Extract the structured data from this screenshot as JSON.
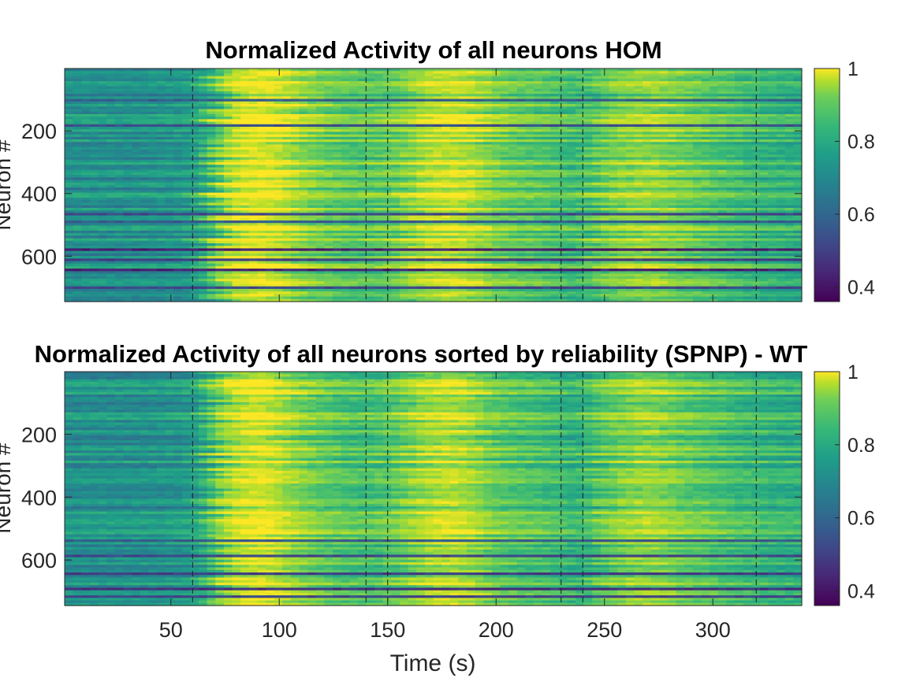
{
  "chart_data": [
    {
      "type": "heatmap",
      "title": "Normalized Activity of all neurons HOM",
      "xlabel": "",
      "ylabel": "Neuron #",
      "x_range": [
        1,
        341
      ],
      "y_range": [
        1,
        745
      ],
      "y_reversed": true,
      "yticks": [
        200,
        400,
        600
      ],
      "xticks": [],
      "event_lines_x": [
        60,
        140,
        150,
        230,
        240,
        320
      ],
      "colormap": "viridis",
      "colorbar": {
        "range": [
          0.36,
          1
        ],
        "ticks": [
          0.4,
          0.6,
          0.8,
          1
        ]
      },
      "activity_profile": {
        "time_s": [
          0,
          40,
          60,
          68,
          75,
          85,
          95,
          105,
          120,
          140,
          155,
          165,
          180,
          190,
          200,
          225,
          240,
          250,
          270,
          290,
          320,
          341
        ],
        "level": [
          0.68,
          0.68,
          0.7,
          0.78,
          0.92,
          0.97,
          0.98,
          0.92,
          0.85,
          0.82,
          0.85,
          0.92,
          0.95,
          0.92,
          0.86,
          0.82,
          0.78,
          0.86,
          0.9,
          0.85,
          0.78,
          0.76
        ]
      },
      "dark_rows": [
        {
          "neuron": 100,
          "value": 0.55
        },
        {
          "neuron": 180,
          "value": 0.52
        },
        {
          "neuron": 470,
          "value": 0.5
        },
        {
          "neuron": 490,
          "value": 0.55
        },
        {
          "neuron": 580,
          "value": 0.42
        },
        {
          "neuron": 610,
          "value": 0.48
        },
        {
          "neuron": 640,
          "value": 0.42
        },
        {
          "neuron": 700,
          "value": 0.5
        }
      ]
    },
    {
      "type": "heatmap",
      "title": "Normalized Activity of all neurons sorted by reliability (SPNP) - WT",
      "xlabel": "Time (s)",
      "ylabel": "Neuron #",
      "x_range": [
        1,
        341
      ],
      "y_range": [
        1,
        745
      ],
      "y_reversed": true,
      "yticks": [
        200,
        400,
        600
      ],
      "xticks": [
        50,
        100,
        150,
        200,
        250,
        300
      ],
      "event_lines_x": [
        60,
        140,
        150,
        230,
        240,
        320
      ],
      "colormap": "viridis",
      "colorbar": {
        "range": [
          0.36,
          1
        ],
        "ticks": [
          0.4,
          0.6,
          0.8,
          1
        ]
      },
      "activity_profile": {
        "time_s": [
          0,
          40,
          60,
          68,
          75,
          85,
          95,
          105,
          120,
          140,
          155,
          165,
          180,
          190,
          200,
          225,
          240,
          250,
          270,
          290,
          320,
          341
        ],
        "level": [
          0.68,
          0.68,
          0.7,
          0.78,
          0.9,
          0.96,
          0.97,
          0.9,
          0.84,
          0.8,
          0.84,
          0.9,
          0.94,
          0.9,
          0.84,
          0.8,
          0.76,
          0.84,
          0.9,
          0.84,
          0.78,
          0.76
        ]
      },
      "dark_rows": [
        {
          "neuron": 540,
          "value": 0.55
        },
        {
          "neuron": 590,
          "value": 0.5
        },
        {
          "neuron": 640,
          "value": 0.48
        },
        {
          "neuron": 690,
          "value": 0.45
        },
        {
          "neuron": 720,
          "value": 0.5
        }
      ]
    }
  ]
}
